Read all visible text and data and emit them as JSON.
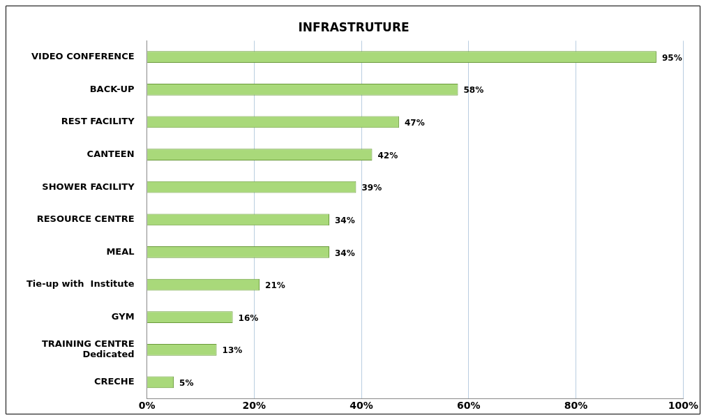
{
  "chart_data": {
    "type": "bar",
    "orientation": "horizontal",
    "title": "INFRASTRUTURE",
    "categories": [
      "VIDEO CONFERENCE",
      "BACK-UP",
      "REST FACILITY",
      "CANTEEN",
      "SHOWER FACILITY",
      "RESOURCE CENTRE",
      "MEAL",
      "Tie-up with  Institute",
      "GYM",
      "TRAINING CENTRE\nDedicated",
      "CRECHE"
    ],
    "values": [
      95,
      58,
      47,
      42,
      39,
      34,
      34,
      21,
      16,
      13,
      5
    ],
    "value_labels": [
      "95%",
      "58%",
      "47%",
      "42%",
      "39%",
      "34%",
      "34%",
      "21%",
      "16%",
      "13%",
      "5%"
    ],
    "color": "#a9d97a",
    "xlim": [
      0,
      100
    ],
    "xticks": [
      {
        "value": 0,
        "label": "0%"
      },
      {
        "value": 20,
        "label": "20%"
      },
      {
        "value": 40,
        "label": "40%"
      },
      {
        "value": 60,
        "label": "60%"
      },
      {
        "value": 80,
        "label": "80%"
      },
      {
        "value": 100,
        "label": "100%"
      }
    ],
    "grid": "x",
    "legend": false
  }
}
